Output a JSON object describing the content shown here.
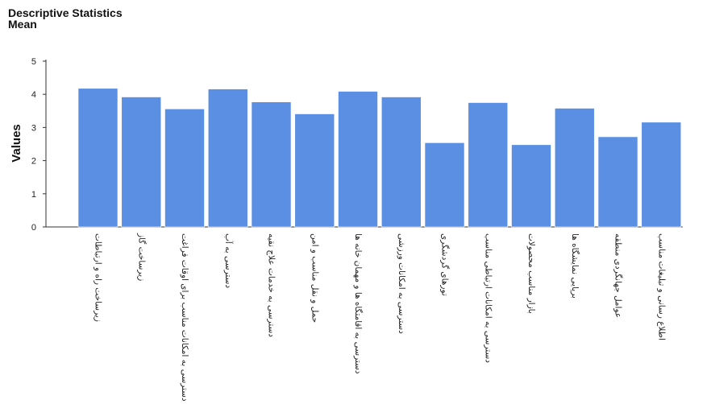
{
  "chart_data": {
    "type": "bar",
    "title": "Descriptive Statistics",
    "subtitle": "Mean",
    "xlabel": "",
    "ylabel": "Values",
    "ylim": [
      0,
      5
    ],
    "yticks": [
      "0",
      "1",
      "2",
      "3",
      "4",
      "5"
    ],
    "bar_color": "#5b8fe3",
    "bar_edge_color": "#ffffff",
    "categories": [
      "زیرساخت راه و ارتباطات",
      "زیرساخت گاز",
      "دسترسی به امکانات مناسب برای اوقات فراغت",
      "دسترسی به آب",
      "دسترسی به خدمات علاج نقیه",
      "حمل و نقل مناسب و امن",
      "دسترسی به اقامتگاه ها و مهمان خانه ها",
      "دسترسی به امکانات ورزشی",
      "تورهای گردشگری",
      "دسترسی به امکانات ارتباطی مناسب",
      "بازار مناسب محصولات",
      "برپایی نمایشگاه ها",
      "عوامل جهانگردی منطقه",
      "اطلاع رسانی و تبلیغات مناسب"
    ],
    "values": [
      4.18,
      3.92,
      3.56,
      4.16,
      3.77,
      3.41,
      4.09,
      3.92,
      2.54,
      3.75,
      2.48,
      3.58,
      2.72,
      3.16
    ]
  }
}
